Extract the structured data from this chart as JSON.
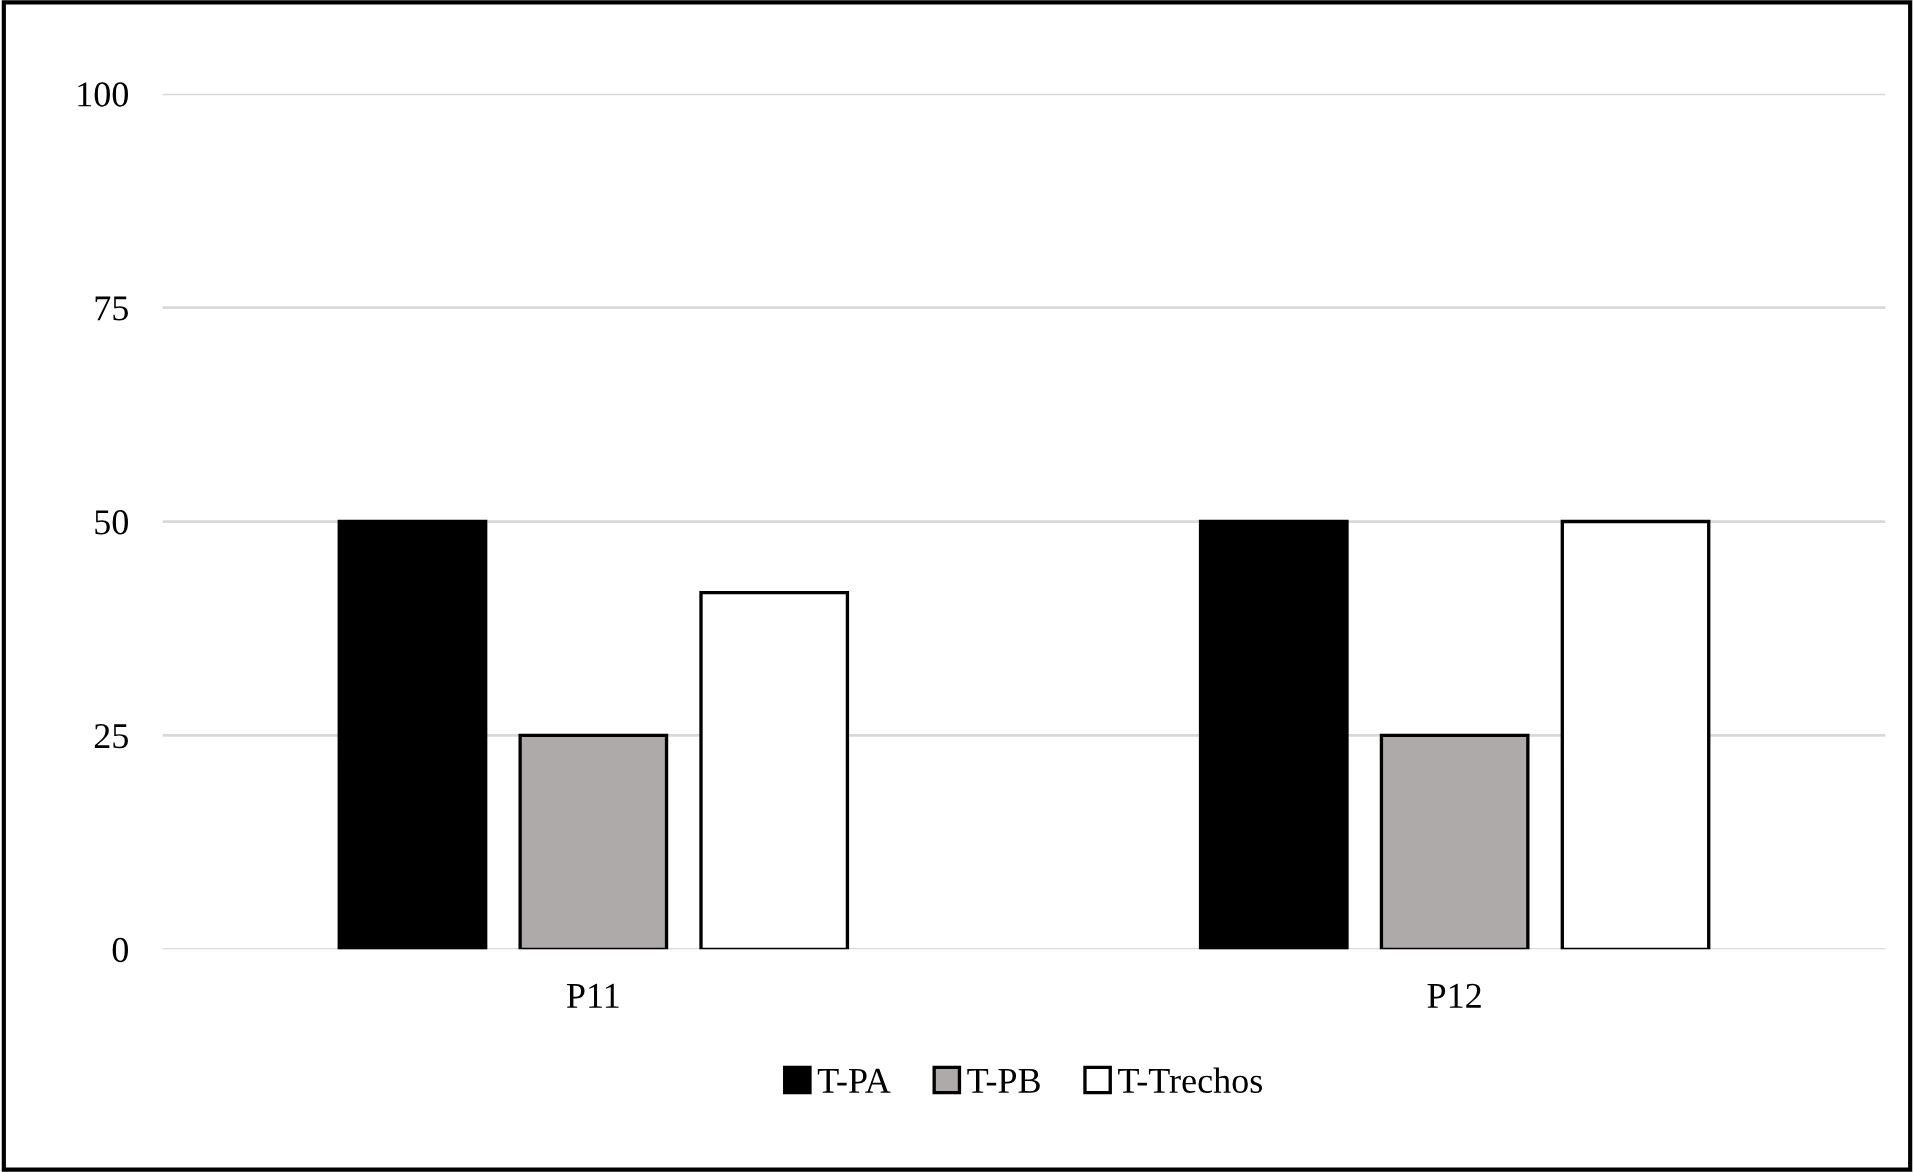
{
  "chart_data": {
    "type": "bar",
    "categories": [
      "P11",
      "P12"
    ],
    "series": [
      {
        "name": "T-PA",
        "color": "#000000",
        "values": [
          50,
          50
        ]
      },
      {
        "name": "T-PB",
        "color": "#aeaaaa",
        "values": [
          25,
          25
        ]
      },
      {
        "name": "T-Trechos",
        "color": "#ffffff",
        "values": [
          41.7,
          50
        ]
      }
    ],
    "ylim": [
      0,
      100
    ],
    "yticks": [
      0,
      25,
      50,
      75,
      100
    ],
    "grid": "y",
    "legend": "bottom"
  }
}
